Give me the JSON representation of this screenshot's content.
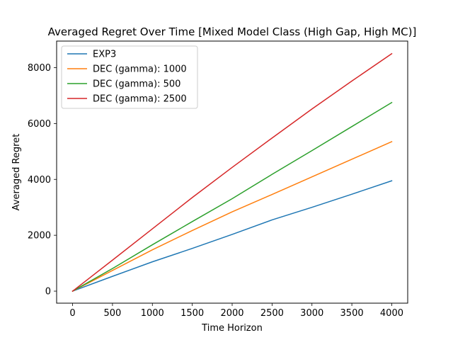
{
  "chart_data": {
    "type": "line",
    "title": "Averaged Regret Over Time [Mixed Model Class (High Gap, High MC)]",
    "xlabel": "Time Horizon",
    "ylabel": "Averaged Regret",
    "xlim": [
      -200,
      4200
    ],
    "ylim": [
      -430,
      8950
    ],
    "xticks": [
      0,
      500,
      1000,
      1500,
      2000,
      2500,
      3000,
      3500,
      4000
    ],
    "yticks": [
      0,
      2000,
      4000,
      6000,
      8000
    ],
    "grid": false,
    "legend_position": "top-left",
    "x": [
      0,
      500,
      1000,
      1500,
      2000,
      2500,
      3000,
      3500,
      4000
    ],
    "series": [
      {
        "name": "EXP3",
        "color": "#1f77b4",
        "values": [
          0,
          530,
          1050,
          1530,
          2030,
          2550,
          3000,
          3470,
          3950
        ]
      },
      {
        "name": "DEC (gamma): 1000",
        "color": "#ff7f0e",
        "values": [
          0,
          740,
          1480,
          2170,
          2840,
          3460,
          4090,
          4720,
          5350
        ]
      },
      {
        "name": "DEC (gamma): 500",
        "color": "#2ca02c",
        "values": [
          0,
          810,
          1660,
          2490,
          3310,
          4180,
          5030,
          5890,
          6750
        ]
      },
      {
        "name": "DEC (gamma): 2500",
        "color": "#d62728",
        "values": [
          0,
          1110,
          2230,
          3350,
          4430,
          5480,
          6520,
          7520,
          8500
        ]
      }
    ]
  }
}
